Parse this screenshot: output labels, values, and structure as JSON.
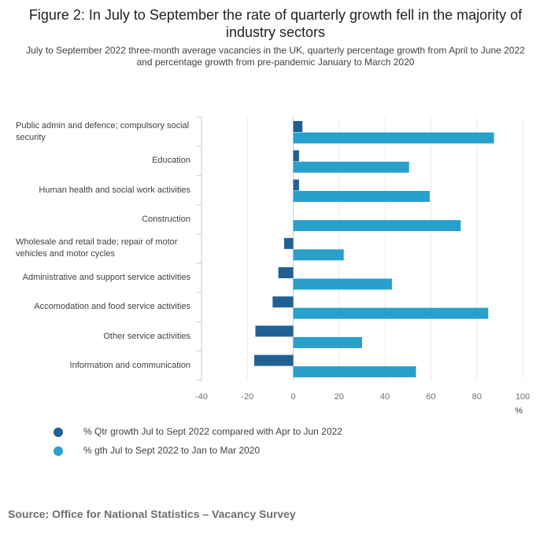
{
  "chart_data": {
    "type": "bar",
    "orientation": "horizontal",
    "title": "Figure 2: In July to September the rate of quarterly growth fell in the majority of industry sectors",
    "subtitle": "July to September 2022 three-month average vacancies in the UK, quarterly percentage growth from April to June 2022 and percentage growth from pre-pandemic January to March 2020",
    "categories": [
      "Public admin and defence; compulsory social security",
      "Education",
      "Human health and social work activities",
      "Construction",
      "Wholesale and retail trade; repair of motor vehicles and motor cycles",
      "Administrative and support service activities",
      "Accomodation and food service activities",
      "Other service activities",
      "Information and communication"
    ],
    "series": [
      {
        "name": "% Qtr growth Jul to Sept 2022 compared with Apr to Jun 2022",
        "color": "#206095",
        "values": [
          4,
          2.5,
          2.5,
          0,
          -4,
          -6.5,
          -9,
          -16.5,
          -17
        ]
      },
      {
        "name": "% gth Jul to Sept 2022 to Jan to Mar 2020",
        "color": "#27a0cc",
        "values": [
          87.5,
          50.5,
          59.5,
          73,
          22,
          43,
          85,
          30,
          53.5
        ]
      }
    ],
    "xlim": [
      -40,
      100
    ],
    "xticks": [
      "-40",
      "-20",
      "0",
      "20",
      "40",
      "60",
      "80",
      "100"
    ],
    "xlabel": "%",
    "grid": true,
    "legend_position": "bottom-left"
  },
  "source": "Source: Office for National Statistics – Vacancy Survey"
}
